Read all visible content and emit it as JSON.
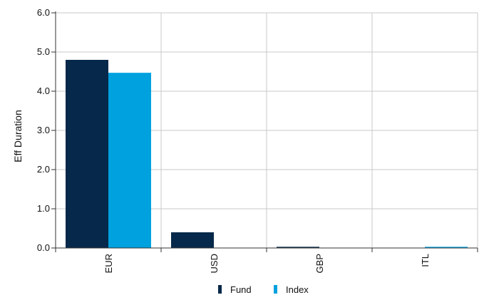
{
  "chart_data": {
    "type": "bar",
    "categories": [
      "EUR",
      "USD",
      "GBP",
      "ITL"
    ],
    "series": [
      {
        "name": "Fund",
        "values": [
          4.8,
          0.4,
          0.03,
          0.0
        ]
      },
      {
        "name": "Index",
        "values": [
          4.47,
          0.0,
          0.0,
          0.03
        ]
      }
    ],
    "ylabel": "Eff Duration",
    "ylim": [
      0,
      6
    ],
    "yticks": [
      "0.0",
      "1.0",
      "2.0",
      "3.0",
      "4.0",
      "5.0",
      "6.0"
    ],
    "grid": true,
    "legend_position": "bottom",
    "colors": {
      "Fund": "#06284a",
      "Index": "#00a1df",
      "grid": "#c8c8c8",
      "axis": "#333333"
    }
  }
}
